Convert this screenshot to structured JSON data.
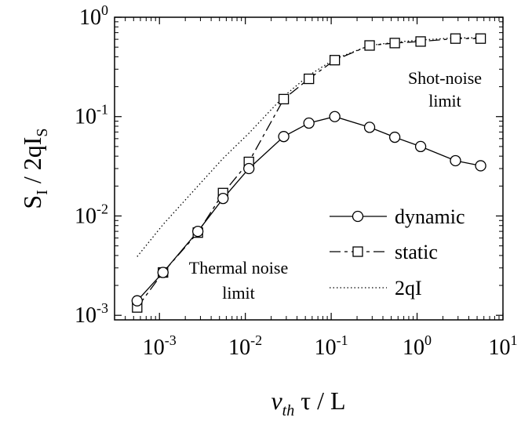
{
  "chart_data": {
    "type": "line",
    "xscale": "log",
    "yscale": "log",
    "xlim": [
      0.0003,
      10
    ],
    "ylim": [
      0.0009,
      1
    ],
    "grid": false,
    "legend_position": "bottom-right",
    "x_ticks": [
      {
        "base": "10",
        "exp": "-3",
        "value": 0.001
      },
      {
        "base": "10",
        "exp": "-2",
        "value": 0.01
      },
      {
        "base": "10",
        "exp": "-1",
        "value": 0.1
      },
      {
        "base": "10",
        "exp": "0",
        "value": 1
      },
      {
        "base": "10",
        "exp": "1",
        "value": 10
      }
    ],
    "y_ticks": [
      {
        "base": "10",
        "exp": "-3",
        "value": 0.001
      },
      {
        "base": "10",
        "exp": "-2",
        "value": 0.01
      },
      {
        "base": "10",
        "exp": "-1",
        "value": 0.1
      },
      {
        "base": "10",
        "exp": "0",
        "value": 1
      }
    ],
    "xlabel": {
      "v": "v",
      "v_sub": "th",
      "rest": " τ / L"
    },
    "ylabel": {
      "s": "S",
      "s_sub": "I",
      "mid": " / 2qI",
      "i_sub": "S"
    },
    "annotations": {
      "shot_line1": "Shot-noise",
      "shot_line2": "limit",
      "thermal_line1": "Thermal noise",
      "thermal_line2": "limit"
    },
    "series": [
      {
        "name": "dynamic",
        "marker": "circle",
        "line": "solid",
        "x": [
          0.00055,
          0.0011,
          0.0028,
          0.0055,
          0.011,
          0.028,
          0.055,
          0.11,
          0.28,
          0.55,
          1.1,
          2.8,
          5.5
        ],
        "y": [
          0.0014,
          0.0027,
          0.007,
          0.015,
          0.03,
          0.063,
          0.086,
          0.1,
          0.078,
          0.062,
          0.05,
          0.036,
          0.032
        ]
      },
      {
        "name": "static",
        "marker": "square",
        "line": "dashed",
        "x": [
          0.00055,
          0.0011,
          0.0028,
          0.0055,
          0.011,
          0.028,
          0.055,
          0.11,
          0.28,
          0.55,
          1.1,
          2.8,
          5.5
        ],
        "y": [
          0.0012,
          0.0027,
          0.0068,
          0.017,
          0.035,
          0.15,
          0.24,
          0.37,
          0.52,
          0.55,
          0.57,
          0.61,
          0.61
        ]
      },
      {
        "name": "2qI",
        "marker": "none",
        "line": "dotted",
        "x": [
          0.00055,
          0.0011,
          0.0028,
          0.0055,
          0.011,
          0.028,
          0.055,
          0.11,
          0.28,
          0.55,
          1.1,
          2.8,
          5.5
        ],
        "y": [
          0.0039,
          0.0082,
          0.02,
          0.038,
          0.068,
          0.16,
          0.26,
          0.38,
          0.52,
          0.56,
          0.59,
          0.62,
          0.62
        ]
      }
    ]
  }
}
